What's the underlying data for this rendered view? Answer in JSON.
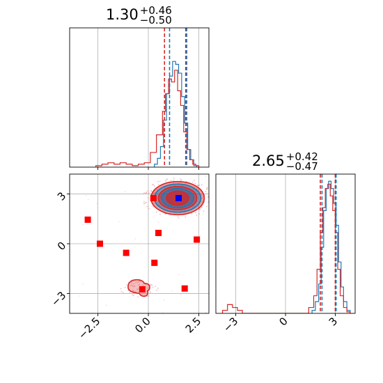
{
  "chart_data": {
    "type": "corner",
    "parameters": [
      {
        "summary": {
          "median": "1.30",
          "plus": "+0.46",
          "minus": "−0.50"
        },
        "axis_range": [
          -3.9,
          3.0
        ],
        "ticks": [
          -2.5,
          0.0,
          2.5
        ],
        "tick_labels": [
          "−2.5",
          "0.0",
          "2.5"
        ],
        "quantile_lines": {
          "blue": [
            1.05,
            1.9
          ],
          "red": [
            0.8,
            1.85
          ]
        }
      },
      {
        "summary": {
          "median": "2.65",
          "plus": "+0.42",
          "minus": "−0.47"
        },
        "axis_range": [
          -4.2,
          4.2
        ],
        "ticks": [
          -3,
          0,
          3
        ],
        "tick_labels": [
          "−3",
          "0",
          "3"
        ],
        "quantile_lines": {
          "blue": [
            2.2,
            3.05
          ],
          "red": [
            2.1,
            3.0
          ]
        }
      }
    ],
    "histograms": {
      "param1": {
        "blue": {
          "bin_edges": [
            0.3,
            0.45,
            0.6,
            0.75,
            0.9,
            1.05,
            1.2,
            1.35,
            1.5,
            1.65,
            1.8,
            1.95,
            2.1,
            2.25,
            2.4
          ],
          "counts": [
            2,
            6,
            14,
            32,
            50,
            62,
            72,
            70,
            64,
            48,
            30,
            12,
            5,
            1
          ]
        },
        "red": {
          "bin_edges": [
            -2.6,
            -2.3,
            -2.0,
            -1.7,
            -1.4,
            -1.1,
            -0.8,
            -0.5,
            -0.2,
            0.1,
            0.4,
            0.7,
            0.85,
            1.0,
            1.15,
            1.3,
            1.45,
            1.6,
            1.75,
            1.9,
            2.05,
            2.2,
            2.35,
            2.5
          ],
          "counts": [
            1,
            2,
            3,
            2,
            3,
            2,
            1,
            2,
            3,
            10,
            22,
            38,
            50,
            60,
            58,
            66,
            52,
            42,
            24,
            12,
            5,
            2,
            1
          ]
        }
      },
      "param2": {
        "blue": {
          "bin_edges": [
            1.6,
            1.8,
            2.0,
            2.15,
            2.3,
            2.45,
            2.6,
            2.75,
            2.9,
            3.05,
            3.2,
            3.35,
            3.5,
            3.7,
            3.9
          ],
          "counts": [
            2,
            8,
            20,
            45,
            70,
            85,
            90,
            85,
            75,
            60,
            35,
            18,
            8,
            2
          ]
        },
        "red": {
          "bin_edges": [
            -3.8,
            -3.5,
            -3.2,
            -2.9,
            -2.6,
            1.4,
            1.7,
            1.9,
            2.1,
            2.25,
            2.4,
            2.55,
            2.7,
            2.85,
            3.0,
            3.15,
            3.3,
            3.5,
            3.7,
            3.9
          ],
          "counts": [
            2,
            6,
            4,
            2,
            0,
            4,
            12,
            30,
            55,
            72,
            85,
            88,
            80,
            70,
            55,
            30,
            12,
            4,
            1
          ]
        }
      }
    },
    "markers": {
      "truth": {
        "x": 1.5,
        "y": 2.75,
        "color": "#0000ff"
      },
      "samples": [
        {
          "x": 0.25,
          "y": 2.75
        },
        {
          "x": -3.0,
          "y": 1.45
        },
        {
          "x": -2.4,
          "y": 0.0
        },
        {
          "x": -1.1,
          "y": -0.55
        },
        {
          "x": 0.5,
          "y": 0.65
        },
        {
          "x": 0.3,
          "y": -1.15
        },
        {
          "x": 2.4,
          "y": 0.25
        },
        {
          "x": -0.3,
          "y": -2.75
        },
        {
          "x": 1.8,
          "y": -2.7
        }
      ]
    },
    "contours": {
      "main_blob_center": [
        1.45,
        2.75
      ],
      "secondary_blob_center": [
        -0.5,
        -2.7
      ]
    },
    "colors": {
      "blue": "#1f77b4",
      "red": "#d62728",
      "marker_red": "#ff0000",
      "marker_blue": "#0000ff",
      "grid": "#b0b0b0"
    },
    "grid": true
  }
}
